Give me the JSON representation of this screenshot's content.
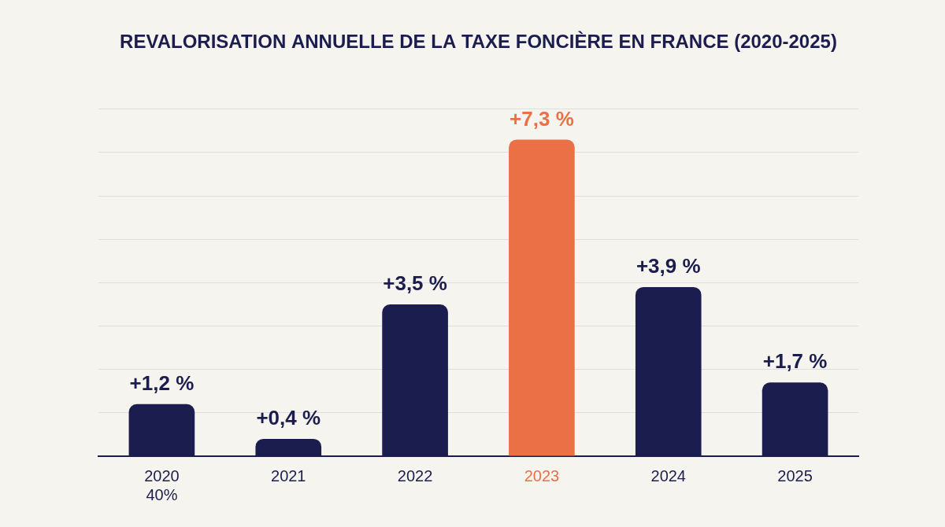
{
  "chart_data": {
    "type": "bar",
    "title": "REVALORISATION ANNUELLE DE LA TAXE FONCIÈRE EN FRANCE (2020-2025)",
    "categories": [
      [
        "2020",
        "40%"
      ],
      "2021",
      "2022",
      "2023",
      "2024",
      "2025"
    ],
    "values": [
      1.2,
      0.4,
      3.5,
      7.3,
      3.9,
      1.7
    ],
    "value_labels": [
      "+1,2 %",
      "+0,4 %",
      "+3,5 %",
      "+7,3 %",
      "+3,9 %",
      "+1,7 %"
    ],
    "colors": [
      "#1b1d4f",
      "#1b1d4f",
      "#1b1d4f",
      "#ec7046",
      "#1b1d4f",
      "#1b1d4f"
    ],
    "ylim": [
      0,
      8
    ],
    "yticks": [
      0,
      1,
      2,
      3,
      4,
      5,
      6,
      7,
      8
    ],
    "grid": true,
    "data_labels": true,
    "tick_labels": "x"
  }
}
